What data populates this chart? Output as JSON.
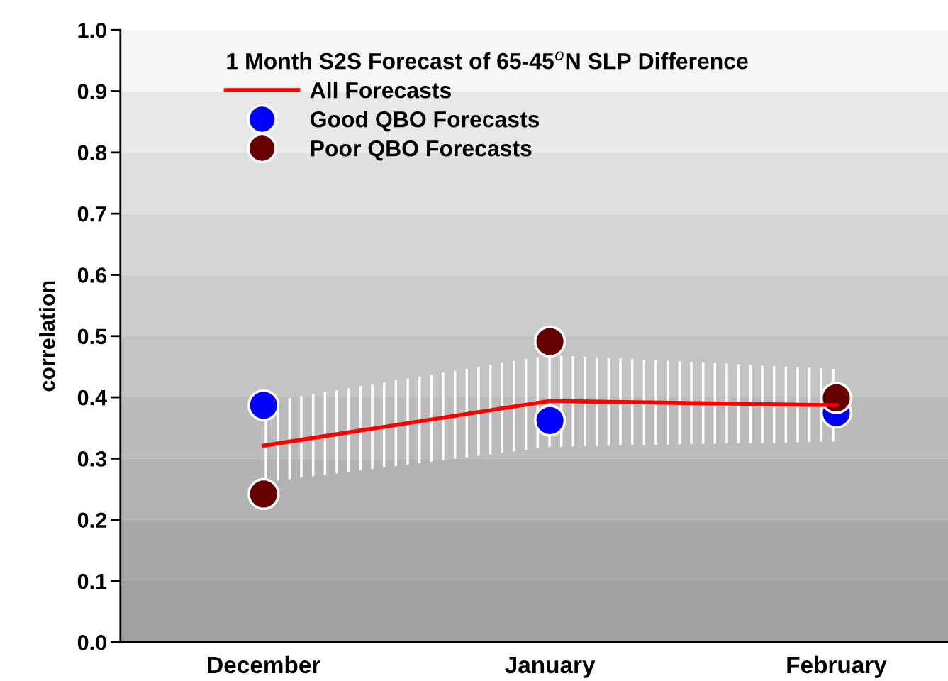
{
  "chart_data": {
    "type": "line",
    "legend_title": "1 Month S2S Forecast of 65-45$^{o}$N SLP Difference",
    "ylabel": "correlation",
    "categories": [
      "December",
      "January",
      "February"
    ],
    "series": [
      {
        "name": "All Forecasts",
        "color": "#ff0000",
        "values": [
          0.321,
          0.394,
          0.387
        ],
        "lower": [
          0.261,
          0.319,
          0.328
        ],
        "upper": [
          0.392,
          0.469,
          0.446
        ],
        "marker": "none"
      },
      {
        "name": "Good QBO Forecasts",
        "type": "scatter",
        "color": "#0000ff",
        "values": [
          0.387,
          0.362,
          0.375
        ],
        "marker": "circle"
      },
      {
        "name": "Poor QBO Forecasts",
        "type": "scatter",
        "color": "#660000",
        "values": [
          0.242,
          0.491,
          0.399
        ],
        "marker": "circle"
      }
    ],
    "ylim": [
      0,
      1
    ],
    "yticks": [
      {
        "value": 0,
        "label": "0.0"
      },
      0.1,
      0.2,
      0.3,
      0.4,
      0.5,
      0.6,
      0.7,
      0.8,
      0.9,
      {
        "value": 1,
        "label": "1.0"
      }
    ],
    "bands": [
      {
        "axis": "y",
        "from": 0,
        "to": 0.1,
        "color": "#a0a0a0"
      },
      {
        "axis": "y",
        "from": 0.1,
        "to": 0.2,
        "color": "#a9a9a9"
      },
      {
        "axis": "y",
        "from": 0.2,
        "to": 0.3,
        "color": "#b2b2b2"
      },
      {
        "axis": "y",
        "from": 0.3,
        "to": 0.4,
        "color": "#bbbbbb"
      },
      {
        "axis": "y",
        "from": 0.4,
        "to": 0.5,
        "color": "#c4c4c4"
      },
      {
        "axis": "y",
        "from": 0.5,
        "to": 0.6,
        "color": "#cdcdcd"
      },
      {
        "axis": "y",
        "from": 0.6,
        "to": 0.7,
        "color": "#d6d6d6"
      },
      {
        "axis": "y",
        "from": 0.7,
        "to": 0.8,
        "color": "#dfdfdf"
      },
      {
        "axis": "y",
        "from": 0.8,
        "to": 0.9,
        "color": "#e8e8e8"
      },
      {
        "axis": "y",
        "from": 0.9,
        "to": 1,
        "color": "#f6f6f6"
      }
    ],
    "grid": false,
    "legend": "top left"
  }
}
